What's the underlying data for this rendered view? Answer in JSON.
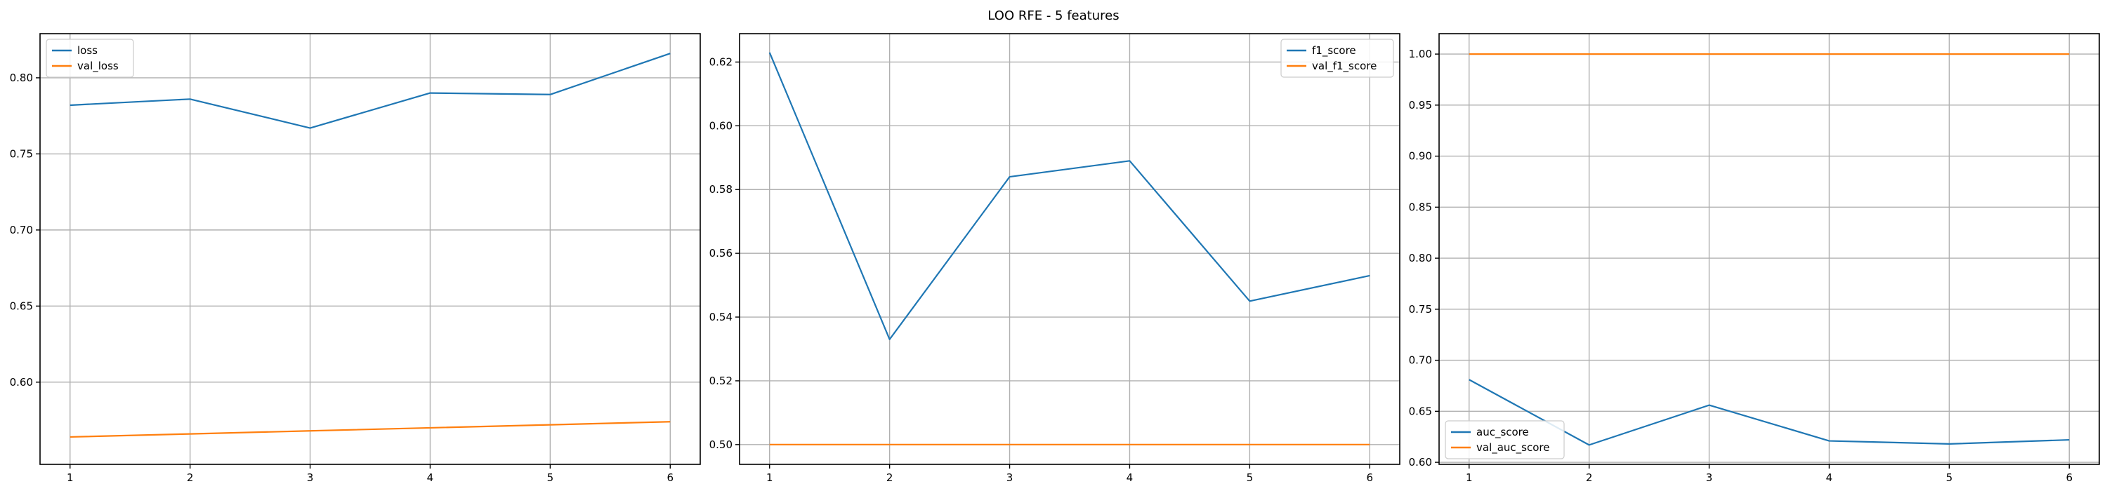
{
  "figure_title": "LOO RFE - 5 features",
  "chart_data": [
    {
      "type": "line",
      "title": "",
      "xlabel": "",
      "ylabel": "",
      "x": [
        1,
        2,
        3,
        4,
        5,
        6
      ],
      "xticks": [
        1,
        2,
        3,
        4,
        5,
        6
      ],
      "xlim": [
        0.75,
        6.25
      ],
      "ylim": [
        0.546,
        0.829
      ],
      "yticks": [
        0.6,
        0.65,
        0.7,
        0.75,
        0.8
      ],
      "ytick_labels": [
        "0.60",
        "0.65",
        "0.70",
        "0.75",
        "0.80"
      ],
      "grid": true,
      "legend_position": "upper left",
      "series": [
        {
          "name": "loss",
          "color": "#1f77b4",
          "values": [
            0.782,
            0.786,
            0.767,
            0.79,
            0.789,
            0.816
          ]
        },
        {
          "name": "val_loss",
          "color": "#ff7f0e",
          "values": [
            0.564,
            0.566,
            0.568,
            0.57,
            0.572,
            0.574
          ]
        }
      ]
    },
    {
      "type": "line",
      "title": "",
      "xlabel": "",
      "ylabel": "",
      "x": [
        1,
        2,
        3,
        4,
        5,
        6
      ],
      "xticks": [
        1,
        2,
        3,
        4,
        5,
        6
      ],
      "xlim": [
        0.75,
        6.25
      ],
      "ylim": [
        0.4938,
        0.6289
      ],
      "yticks": [
        0.5,
        0.52,
        0.54,
        0.56,
        0.58,
        0.6,
        0.62
      ],
      "ytick_labels": [
        "0.50",
        "0.52",
        "0.54",
        "0.56",
        "0.58",
        "0.60",
        "0.62"
      ],
      "grid": true,
      "legend_position": "upper right",
      "series": [
        {
          "name": "f1_score",
          "color": "#1f77b4",
          "values": [
            0.623,
            0.533,
            0.584,
            0.589,
            0.545,
            0.553
          ]
        },
        {
          "name": "val_f1_score",
          "color": "#ff7f0e",
          "values": [
            0.5,
            0.5,
            0.5,
            0.5,
            0.5,
            0.5
          ]
        }
      ]
    },
    {
      "type": "line",
      "title": "",
      "xlabel": "",
      "ylabel": "",
      "x": [
        1,
        2,
        3,
        4,
        5,
        6
      ],
      "xticks": [
        1,
        2,
        3,
        4,
        5,
        6
      ],
      "xlim": [
        0.75,
        6.25
      ],
      "ylim": [
        0.598,
        1.02
      ],
      "yticks": [
        0.6,
        0.65,
        0.7,
        0.75,
        0.8,
        0.85,
        0.9,
        0.95,
        1.0
      ],
      "ytick_labels": [
        "0.60",
        "0.65",
        "0.70",
        "0.75",
        "0.80",
        "0.85",
        "0.90",
        "0.95",
        "1.00"
      ],
      "grid": true,
      "legend_position": "lower left",
      "series": [
        {
          "name": "auc_score",
          "color": "#1f77b4",
          "values": [
            0.681,
            0.617,
            0.656,
            0.621,
            0.618,
            0.622
          ]
        },
        {
          "name": "val_auc_score",
          "color": "#ff7f0e",
          "values": [
            1.0,
            1.0,
            1.0,
            1.0,
            1.0,
            1.0
          ]
        }
      ]
    }
  ]
}
